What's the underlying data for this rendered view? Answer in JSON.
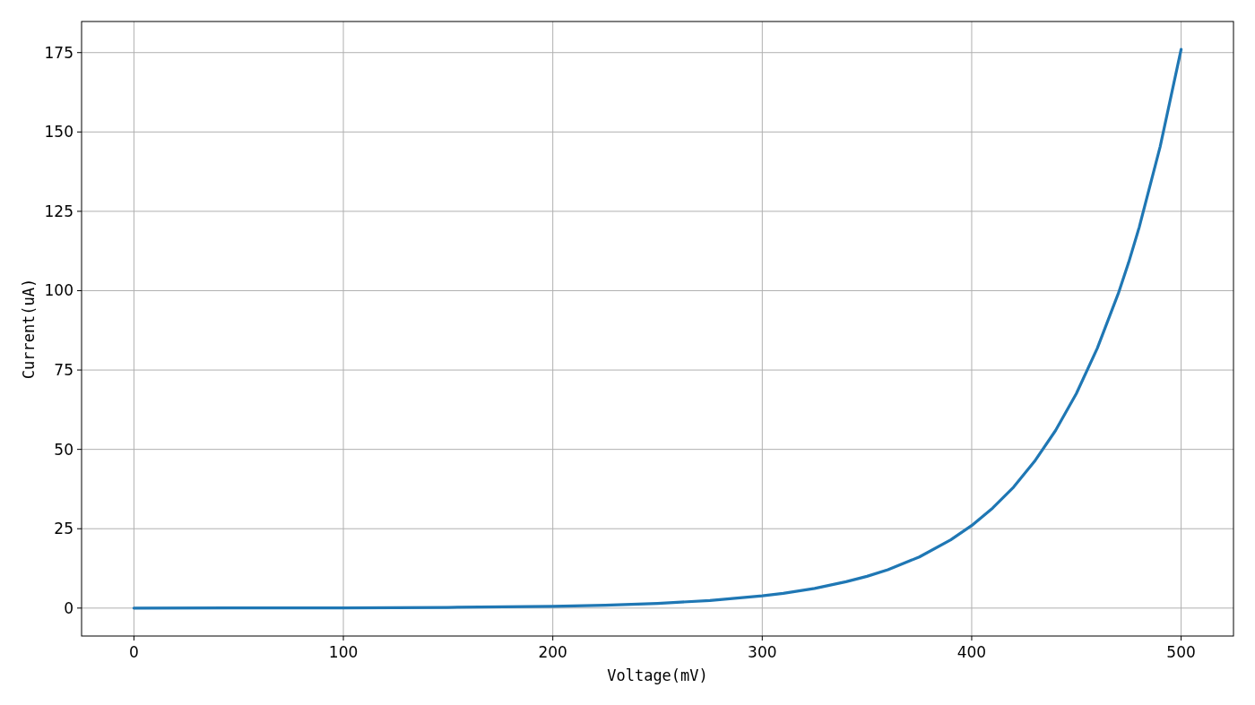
{
  "chart_data": {
    "type": "line",
    "xlabel": "Voltage(mV)",
    "ylabel": "Current(uA)",
    "x": [
      0,
      50,
      100,
      150,
      200,
      225,
      250,
      275,
      300,
      310,
      325,
      340,
      350,
      360,
      375,
      390,
      400,
      410,
      420,
      430,
      440,
      450,
      460,
      470,
      475,
      480,
      490,
      500
    ],
    "series": [
      {
        "color": "#1f77b4",
        "values": [
          0.01,
          0.03,
          0.08,
          0.22,
          0.57,
          0.92,
          1.48,
          2.38,
          3.84,
          4.65,
          6.2,
          8.3,
          10.0,
          12.1,
          16.1,
          21.5,
          26,
          31.5,
          38.1,
          46.2,
          55.9,
          67.6,
          81.9,
          99.1,
          109,
          120,
          145.4,
          176
        ]
      }
    ],
    "xlim": [
      -25,
      525
    ],
    "xticks": [
      0,
      100,
      200,
      300,
      400,
      500
    ],
    "ylim": [
      -8.8,
      184.8
    ],
    "yticks": [
      0,
      25,
      50,
      75,
      100,
      125,
      150,
      175
    ],
    "grid": true,
    "line_style": "solid"
  }
}
